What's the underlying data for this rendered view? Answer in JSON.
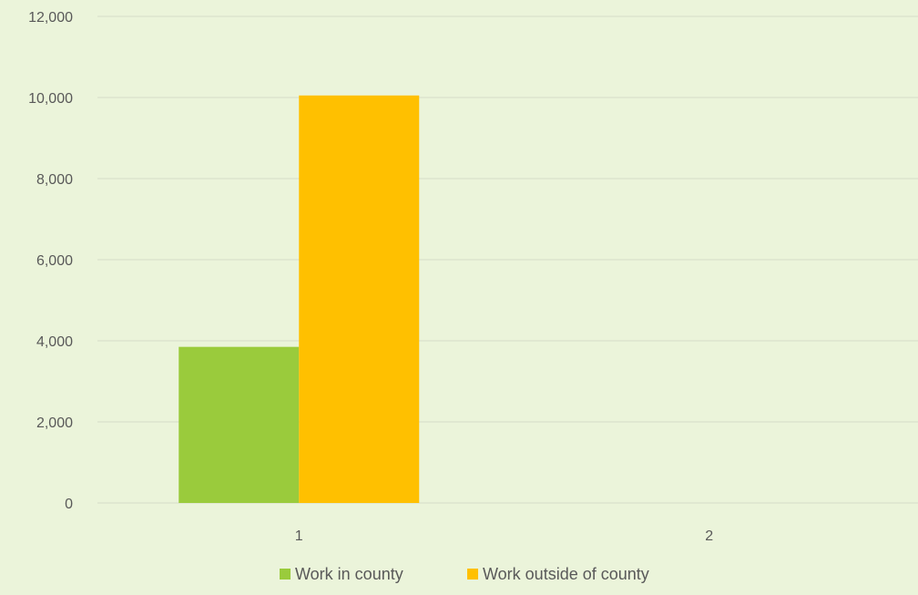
{
  "chart_data": {
    "type": "bar",
    "categories": [
      "1",
      "2"
    ],
    "series": [
      {
        "name": "Work in county",
        "values": [
          3850,
          0
        ],
        "color": "#9acb3c"
      },
      {
        "name": "Work outside of county",
        "values": [
          10050,
          0
        ],
        "color": "#ffc000"
      }
    ],
    "ylim": [
      0,
      12000
    ],
    "y_ticks": [
      "0",
      "2,000",
      "4,000",
      "6,000",
      "8,000",
      "10,000",
      "12,000"
    ],
    "grid": true,
    "legend_position": "bottom"
  }
}
